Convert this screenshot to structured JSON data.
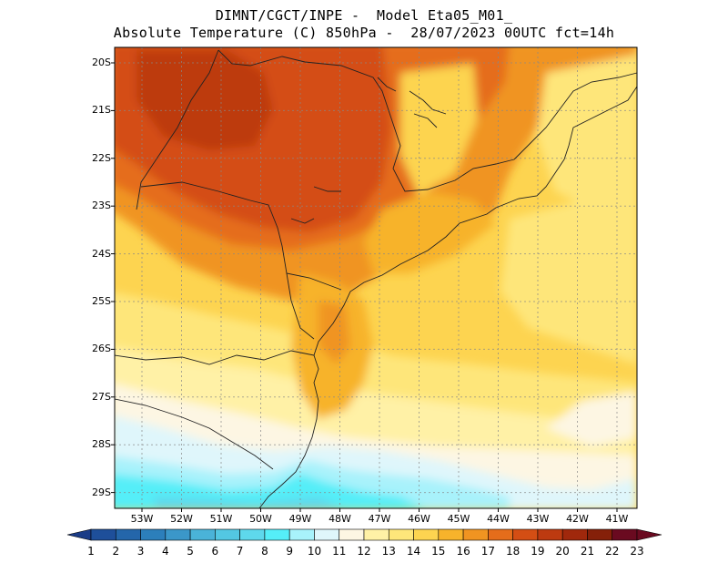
{
  "header": {
    "line1": "DIMNT/CGCT/INPE -  Model Eta05_M01_",
    "line2": "Absolute Temperature (C) 850hPa -  28/07/2023 00UTC fct=14h"
  },
  "lat_labels": [
    "20S",
    "21S",
    "22S",
    "23S",
    "24S",
    "25S",
    "26S",
    "27S",
    "28S",
    "29S"
  ],
  "lon_labels": [
    "53W",
    "52W",
    "51W",
    "50W",
    "49W",
    "48W",
    "47W",
    "46W",
    "45W",
    "44W",
    "43W",
    "42W",
    "41W"
  ],
  "colorbar": {
    "labels": [
      "1",
      "2",
      "3",
      "4",
      "5",
      "6",
      "7",
      "8",
      "9",
      "10",
      "11",
      "12",
      "13",
      "14",
      "15",
      "16",
      "17",
      "18",
      "19",
      "20",
      "21",
      "22",
      "23"
    ],
    "colors": [
      "#1b3c87",
      "#1e4f9a",
      "#2466aa",
      "#2c7fbb",
      "#3b97c9",
      "#4ab3d8",
      "#53c7e2",
      "#5ed8ec",
      "#55eef8",
      "#a8f2fb",
      "#dff6fb",
      "#fdf6e3",
      "#fff1a6",
      "#fee67a",
      "#fdd450",
      "#f7b32b",
      "#f09421",
      "#e56d1b",
      "#d44e14",
      "#bd3a10",
      "#a0280c",
      "#852009",
      "#6a0a20"
    ]
  }
}
